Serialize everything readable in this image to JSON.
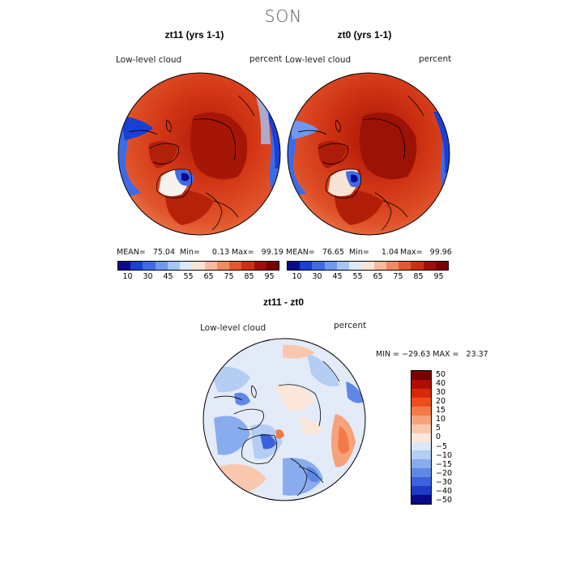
{
  "figure": {
    "season": "SON"
  },
  "panels": [
    {
      "title": "zt11 (yrs 1-1)",
      "variable": "Low-level cloud",
      "units": "percent",
      "stats": {
        "mean": "MEAN=   75.04",
        "min": "Min=     0.13",
        "max": "Max=   99.19"
      },
      "levels": [
        "10",
        "30",
        "45",
        "55",
        "65",
        "75",
        "85",
        "95"
      ]
    },
    {
      "title": "zt0 (yrs 1-1)",
      "variable": "Low-level cloud",
      "units": "percent",
      "stats": {
        "mean": "MEAN=   76.65",
        "min": "Min=     1.04",
        "max": "Max=   99.96"
      },
      "levels": [
        "10",
        "30",
        "45",
        "55",
        "65",
        "75",
        "85",
        "95"
      ]
    }
  ],
  "diff": {
    "title": "zt11 - zt0",
    "variable": "Low-level cloud",
    "units": "percent",
    "minmax": "MIN = −29.63 MAX =   23.37",
    "levels": [
      "50",
      "40",
      "30",
      "20",
      "15",
      "10",
      "5",
      "0",
      "−5",
      "−10",
      "−15",
      "−20",
      "−30",
      "−40",
      "−50"
    ]
  },
  "colors": {
    "abs_scale": [
      "#0a0a8c",
      "#1a3fd4",
      "#3d6be8",
      "#6f98f0",
      "#a5c4f6",
      "#dbe8fb",
      "#fbe2d4",
      "#f8b99c",
      "#f18a62",
      "#e4572f",
      "#cd2f14",
      "#a10f06",
      "#7a0000"
    ],
    "diff_scale": [
      "#7a0000",
      "#b00d04",
      "#d8270b",
      "#ee4e1d",
      "#f37a48",
      "#f6a27a",
      "#f9c7ad",
      "#fbe6da",
      "#dce8f8",
      "#b4cdf3",
      "#89acee",
      "#5f88e6",
      "#3a62dc",
      "#1c3bc8",
      "#080a8a"
    ],
    "ocean_red": "#dc3d1c",
    "land_dark": "#a61607",
    "diff_bg": "#e8eef9"
  }
}
